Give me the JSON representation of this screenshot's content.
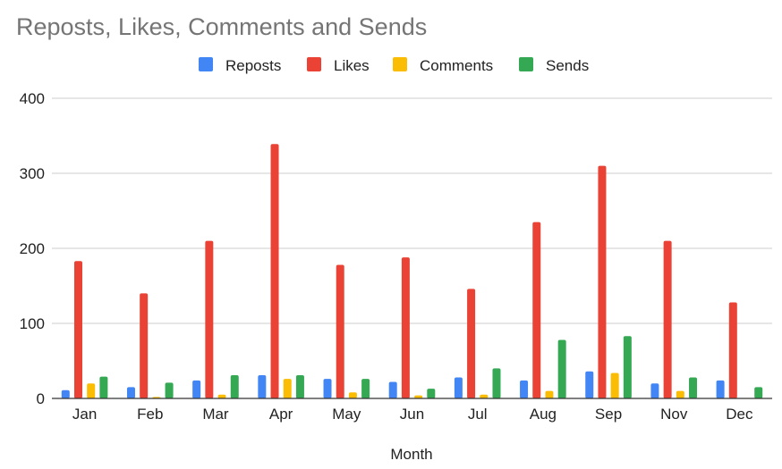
{
  "chart_data": {
    "type": "bar",
    "title": "Reposts, Likes, Comments and Sends",
    "xlabel": "Month",
    "ylabel": "",
    "ylim": [
      0,
      400
    ],
    "yticks": [
      0,
      100,
      200,
      300,
      400
    ],
    "grid": true,
    "legend_position": "top",
    "categories": [
      "Jan",
      "Feb",
      "Mar",
      "Apr",
      "May",
      "Jun",
      "Jul",
      "Aug",
      "Sep",
      "Nov",
      "Dec"
    ],
    "series": [
      {
        "name": "Reposts",
        "color": "#4285f4",
        "values": [
          11,
          15,
          24,
          31,
          26,
          22,
          28,
          24,
          36,
          20,
          24
        ]
      },
      {
        "name": "Likes",
        "color": "#ea4335",
        "values": [
          183,
          140,
          210,
          339,
          178,
          188,
          146,
          235,
          310,
          210,
          128
        ]
      },
      {
        "name": "Comments",
        "color": "#fbbc04",
        "values": [
          20,
          2,
          5,
          26,
          8,
          4,
          5,
          10,
          34,
          10,
          0
        ]
      },
      {
        "name": "Sends",
        "color": "#34a853",
        "values": [
          29,
          21,
          31,
          31,
          26,
          13,
          40,
          78,
          83,
          28,
          15
        ]
      }
    ]
  }
}
